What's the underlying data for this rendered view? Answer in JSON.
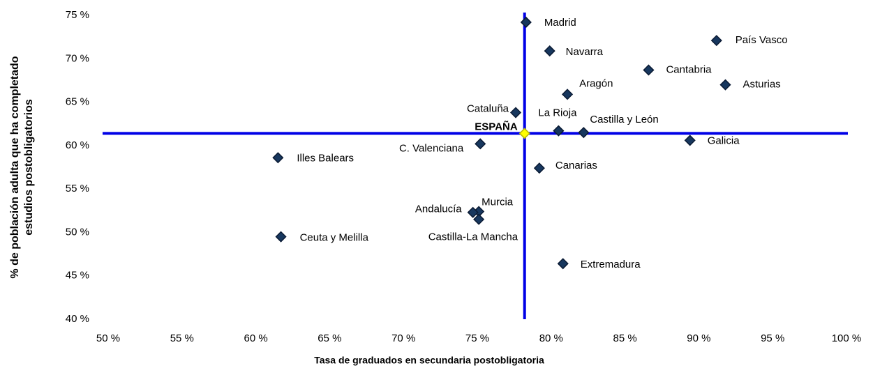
{
  "chart_data": {
    "type": "scatter",
    "xlabel": "Tasa de graduados en secundaria postobligatoria",
    "ylabel": [
      "% de población adulta que ha completado",
      "estudios postobligatorios"
    ],
    "xlim": [
      50,
      100
    ],
    "ylim": [
      40,
      75
    ],
    "xticks": [
      {
        "value": 50,
        "label": "50 %"
      },
      {
        "value": 55,
        "label": "55 %"
      },
      {
        "value": 60,
        "label": "60 %"
      },
      {
        "value": 65,
        "label": "65 %"
      },
      {
        "value": 70,
        "label": "70 %"
      },
      {
        "value": 75,
        "label": "75 %"
      },
      {
        "value": 80,
        "label": "80 %"
      },
      {
        "value": 85,
        "label": "85 %"
      },
      {
        "value": 90,
        "label": "90 %"
      },
      {
        "value": 95,
        "label": "95 %"
      },
      {
        "value": 100,
        "label": "100 %"
      }
    ],
    "yticks": [
      {
        "value": 40,
        "label": "40 %"
      },
      {
        "value": 45,
        "label": "45 %"
      },
      {
        "value": 50,
        "label": "50 %"
      },
      {
        "value": 55,
        "label": "55 %"
      },
      {
        "value": 60,
        "label": "60 %"
      },
      {
        "value": 65,
        "label": "65 %"
      },
      {
        "value": 70,
        "label": "70 %"
      },
      {
        "value": 75,
        "label": "75 %"
      }
    ],
    "grid": false,
    "point_labels": [
      "Madrid",
      "Navarra",
      "País Vasco",
      "Cantabria",
      "Asturias",
      "Aragón",
      "Cataluña",
      "La Rioja",
      "Castilla y León",
      "ESPAÑA",
      "Galicia",
      "C. Valenciana",
      "Illes Balears",
      "Canarias",
      "Murcia",
      "Andalucía",
      "Castilla-La Mancha",
      "Ceuta y Melilla",
      "Extremadura"
    ],
    "x": [
      78.3,
      79.9,
      91.2,
      86.6,
      91.8,
      81.1,
      77.6,
      80.5,
      82.2,
      78.2,
      89.4,
      75.2,
      61.5,
      79.2,
      75.1,
      74.7,
      75.1,
      61.7,
      80.8
    ],
    "values": [
      74.2,
      70.9,
      72.1,
      68.7,
      67.0,
      65.9,
      63.8,
      61.7,
      61.5,
      61.4,
      60.6,
      60.2,
      58.6,
      57.4,
      52.4,
      52.3,
      51.5,
      49.5,
      46.4
    ],
    "color": "#17375e",
    "highlight_color": "#ffff00",
    "reference_color": "#0000e6"
  }
}
